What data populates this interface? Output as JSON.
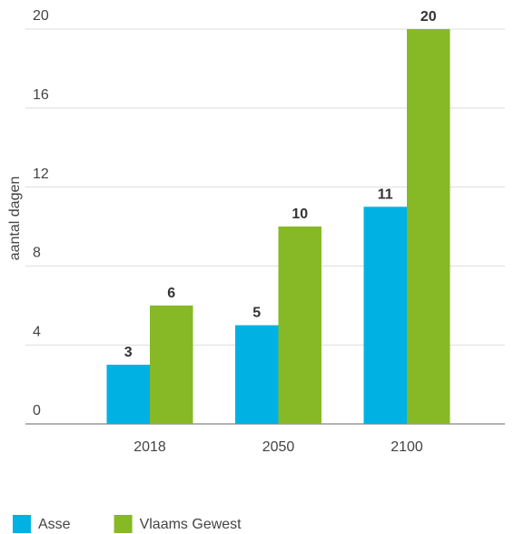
{
  "chart_data": {
    "type": "bar",
    "y_label": "aantal dagen",
    "categories": [
      "2018",
      "2050",
      "2100"
    ],
    "series": [
      {
        "name": "Asse",
        "color": "#00b2e3",
        "values": [
          3,
          5,
          11
        ]
      },
      {
        "name": "Vlaams Gewest",
        "color": "#86b925",
        "values": [
          6,
          10,
          20
        ]
      }
    ],
    "ylim": [
      0,
      20
    ],
    "yticks": [
      0,
      4,
      8,
      12,
      16,
      20
    ],
    "grid": true,
    "legend": "bottom-left"
  }
}
